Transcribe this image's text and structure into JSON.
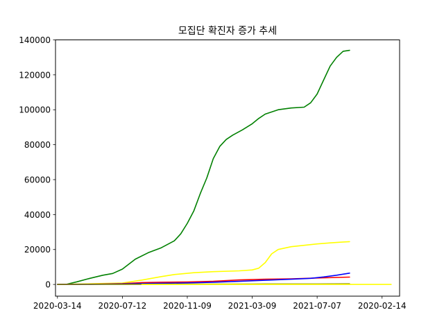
{
  "chart_data": {
    "type": "line",
    "title": "모집단 확진자 증가 추세",
    "xlabel": "",
    "ylabel": "",
    "x_tick_labels": [
      "2020-03-14",
      "2020-07-12",
      "2020-11-09",
      "2021-03-09",
      "2021-07-07",
      "2020-02-14"
    ],
    "y_ticks": [
      0,
      20000,
      40000,
      60000,
      80000,
      100000,
      120000,
      140000
    ],
    "y_tick_labels": [
      "0",
      "20000",
      "40000",
      "60000",
      "80000",
      "100000",
      "120000",
      "140000"
    ],
    "xlim": [
      -0.03,
      5.27
    ],
    "ylim": [
      -6700,
      140000
    ],
    "grid": false,
    "legend": "none",
    "series": [
      {
        "color": "#008000",
        "x": [
          0.15,
          0.3,
          0.5,
          0.7,
          0.85,
          1.0,
          1.2,
          1.4,
          1.6,
          1.8,
          1.9,
          2.0,
          2.1,
          2.2,
          2.3,
          2.4,
          2.5,
          2.6,
          2.7,
          2.85,
          3.0,
          3.1,
          3.2,
          3.4,
          3.6,
          3.8,
          3.9,
          4.0,
          4.1,
          4.2,
          4.3,
          4.4,
          4.5
        ],
        "y": [
          200,
          1500,
          3500,
          5300,
          6300,
          8800,
          14500,
          18200,
          21000,
          25000,
          29000,
          35000,
          42000,
          52000,
          61000,
          72000,
          79000,
          83000,
          85500,
          88500,
          92000,
          95000,
          97500,
          100000,
          101000,
          101500,
          104000,
          109000,
          117000,
          125000,
          130000,
          133500,
          134000
        ]
      },
      {
        "color": "#ffff00",
        "x": [
          0,
          1.0,
          1.3,
          1.6,
          1.8,
          2.1,
          2.4,
          2.8,
          3.0,
          3.1,
          3.2,
          3.3,
          3.4,
          3.6,
          3.8,
          4.0,
          4.2,
          4.4,
          4.5
        ],
        "y": [
          0,
          800,
          2500,
          4500,
          5700,
          6700,
          7300,
          7800,
          8300,
          9300,
          12500,
          17500,
          20000,
          21600,
          22400,
          23200,
          23800,
          24300,
          24500
        ]
      },
      {
        "color": "#ff0000",
        "x": [
          0,
          0.7,
          1.0,
          1.3,
          1.6,
          2.0,
          2.4,
          2.8,
          3.2,
          3.6,
          4.0,
          4.5
        ],
        "y": [
          0,
          200,
          500,
          1100,
          1300,
          1400,
          1800,
          2600,
          3000,
          3200,
          3700,
          4200
        ]
      },
      {
        "color": "#0000ff",
        "x": [
          0,
          0.5,
          1.0,
          1.5,
          2.0,
          2.4,
          2.8,
          3.2,
          3.6,
          3.9,
          4.1,
          4.3,
          4.5
        ],
        "y": [
          0,
          100,
          300,
          600,
          900,
          1300,
          1800,
          2400,
          3000,
          3500,
          4300,
          5300,
          6500
        ]
      },
      {
        "color": "#808000",
        "x": [
          0,
          1.0,
          2.0,
          3.0,
          4.0,
          4.5
        ],
        "y": [
          0,
          100,
          180,
          240,
          300,
          350
        ]
      },
      {
        "color": "#ffff00",
        "x": [
          1.3,
          2.5,
          3.5,
          4.5,
          5.14
        ],
        "y": [
          0,
          0,
          0,
          0,
          0
        ]
      }
    ]
  }
}
